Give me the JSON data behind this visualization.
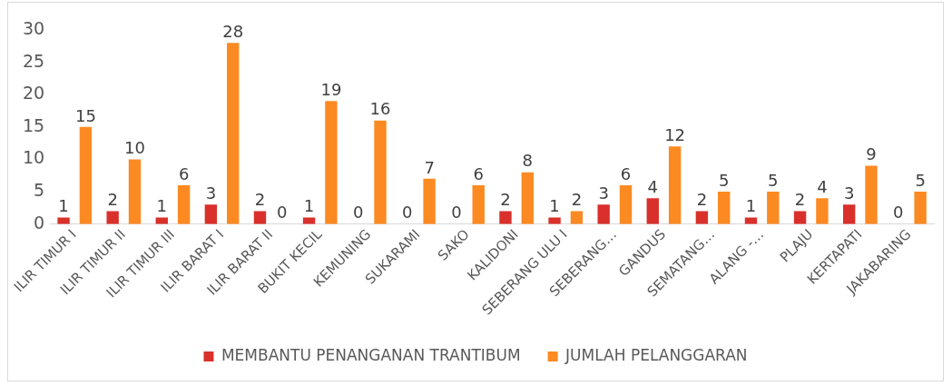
{
  "chart_data": {
    "type": "bar",
    "categories": [
      "ILIR TIMUR I",
      "ILIR TIMUR II",
      "ILIR TIMUR III",
      "ILIR BARAT I",
      "ILIR BARAT II",
      "BUKIT KECIL",
      "KEMUNING",
      "SUKARAMI",
      "SAKO",
      "KALIDONI",
      "SEBERANG ULU I",
      "SEBERANG…",
      "GANDUS",
      "SEMATANG…",
      "ALANG -…",
      "PLAJU",
      "KERTAPATI",
      "JAKABARING"
    ],
    "series": [
      {
        "name": "MEMBANTU PENANGANAN TRANTIBUM",
        "color": "#d9302b",
        "values": [
          1,
          2,
          1,
          3,
          2,
          1,
          0,
          0,
          0,
          2,
          1,
          3,
          4,
          2,
          1,
          2,
          3,
          0
        ]
      },
      {
        "name": "JUMLAH PELANGGARAN",
        "color": "#fb8a22",
        "values": [
          15,
          10,
          6,
          28,
          0,
          19,
          16,
          7,
          6,
          8,
          2,
          6,
          12,
          5,
          5,
          4,
          9,
          5
        ]
      }
    ],
    "ylim": [
      0,
      30
    ],
    "yticks": [
      0,
      5,
      10,
      15,
      20,
      25,
      30
    ],
    "grid": false,
    "legend": "bottom",
    "data_labels": true
  }
}
